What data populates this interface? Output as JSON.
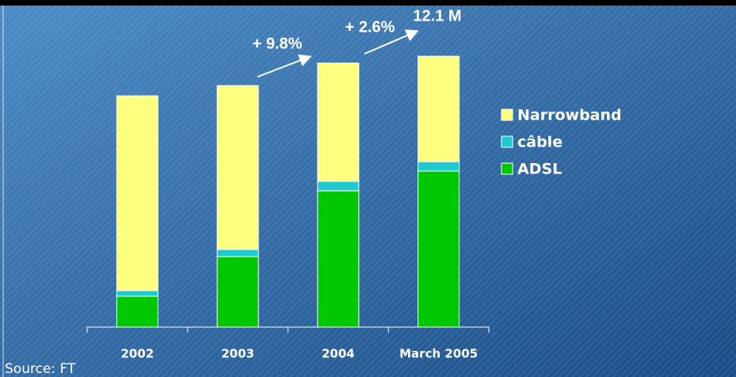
{
  "chart_data": {
    "type": "stacked_bar",
    "categories": [
      "2002",
      "2003",
      "2004",
      "March 2005"
    ],
    "series": [
      {
        "name": "ADSL",
        "color": "#00c800",
        "values": [
          1.38,
          3.15,
          6.09,
          6.97
        ]
      },
      {
        "name": "câble",
        "color": "#20c8d0",
        "values": [
          0.25,
          0.32,
          0.42,
          0.42
        ]
      },
      {
        "name": "Narrowband",
        "color": "#ffff80",
        "values": [
          8.7,
          7.32,
          5.29,
          4.71
        ]
      }
    ],
    "annotations": [
      "+ 9.8%",
      "+ 2.6%",
      "12.1 M"
    ],
    "source": "Source: FT"
  }
}
